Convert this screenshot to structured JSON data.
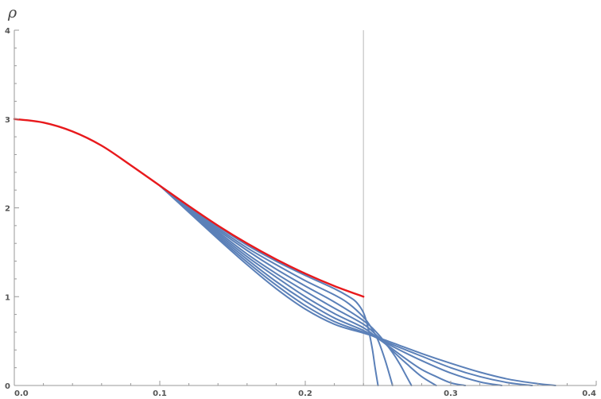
{
  "chart_data": {
    "type": "line",
    "title": "",
    "xlabel": "",
    "ylabel": "ρ",
    "xlim": [
      0,
      0.4
    ],
    "ylim": [
      0,
      4
    ],
    "x_ticks": [
      0.0,
      0.1,
      0.2,
      0.3,
      0.4
    ],
    "x_tick_labels": [
      "0.0",
      "0.1",
      "0.2",
      "0.3",
      "0.4"
    ],
    "y_ticks": [
      0,
      1,
      2,
      3,
      4
    ],
    "y_tick_labels": [
      "0",
      "1",
      "2",
      "3",
      "4"
    ],
    "grid": false,
    "legend": "none",
    "reference_line": {
      "x": 0.24,
      "color": "#c4c4c4"
    },
    "series": [
      {
        "color": "#e8191c",
        "x": [
          0,
          0.02,
          0.04,
          0.06,
          0.08,
          0.1,
          0.12,
          0.14,
          0.16,
          0.18,
          0.2,
          0.22,
          0.24
        ],
        "y": [
          3.0,
          2.96,
          2.86,
          2.7,
          2.48,
          2.25,
          2.02,
          1.8,
          1.6,
          1.42,
          1.26,
          1.12,
          1.0
        ]
      },
      {
        "color": "#5b80b8",
        "x": [
          0.1,
          0.12,
          0.14,
          0.16,
          0.18,
          0.2,
          0.22,
          0.23,
          0.235,
          0.24,
          0.243,
          0.246,
          0.248,
          0.25
        ],
        "y": [
          2.25,
          2.02,
          1.79,
          1.58,
          1.4,
          1.24,
          1.09,
          1.0,
          0.94,
          0.82,
          0.66,
          0.42,
          0.2,
          0.0
        ]
      },
      {
        "color": "#5b80b8",
        "x": [
          0.1,
          0.12,
          0.14,
          0.16,
          0.18,
          0.2,
          0.22,
          0.23,
          0.24,
          0.245,
          0.25,
          0.255,
          0.26
        ],
        "y": [
          2.25,
          2.01,
          1.77,
          1.55,
          1.36,
          1.18,
          1.02,
          0.92,
          0.77,
          0.66,
          0.51,
          0.28,
          0.0
        ]
      },
      {
        "color": "#5b80b8",
        "x": [
          0.1,
          0.12,
          0.14,
          0.16,
          0.18,
          0.2,
          0.22,
          0.24,
          0.25,
          0.26,
          0.265,
          0.27,
          0.273
        ],
        "y": [
          2.25,
          2.0,
          1.75,
          1.52,
          1.31,
          1.12,
          0.94,
          0.73,
          0.58,
          0.37,
          0.24,
          0.09,
          0.0
        ]
      },
      {
        "color": "#5b80b8",
        "x": [
          0.1,
          0.12,
          0.14,
          0.16,
          0.18,
          0.2,
          0.22,
          0.24,
          0.25,
          0.26,
          0.27,
          0.28,
          0.29
        ],
        "y": [
          2.25,
          1.99,
          1.73,
          1.48,
          1.26,
          1.06,
          0.87,
          0.69,
          0.55,
          0.39,
          0.24,
          0.1,
          0.0
        ]
      },
      {
        "color": "#5b80b8",
        "x": [
          0.1,
          0.12,
          0.14,
          0.16,
          0.18,
          0.2,
          0.22,
          0.24,
          0.25,
          0.26,
          0.27,
          0.28,
          0.29,
          0.3,
          0.31
        ],
        "y": [
          2.25,
          1.98,
          1.71,
          1.45,
          1.22,
          1.0,
          0.81,
          0.65,
          0.53,
          0.41,
          0.29,
          0.18,
          0.1,
          0.03,
          0.0
        ]
      },
      {
        "color": "#5b80b8",
        "x": [
          0.1,
          0.12,
          0.14,
          0.16,
          0.18,
          0.2,
          0.22,
          0.24,
          0.25,
          0.26,
          0.28,
          0.3,
          0.32,
          0.335
        ],
        "y": [
          2.25,
          1.97,
          1.69,
          1.42,
          1.17,
          0.95,
          0.76,
          0.62,
          0.53,
          0.44,
          0.28,
          0.14,
          0.04,
          0.0
        ]
      },
      {
        "color": "#5b80b8",
        "x": [
          0.1,
          0.12,
          0.14,
          0.16,
          0.18,
          0.2,
          0.22,
          0.24,
          0.25,
          0.26,
          0.28,
          0.3,
          0.32,
          0.34,
          0.356
        ],
        "y": [
          2.25,
          1.96,
          1.67,
          1.39,
          1.13,
          0.9,
          0.72,
          0.6,
          0.53,
          0.46,
          0.33,
          0.2,
          0.1,
          0.03,
          0.0
        ]
      },
      {
        "color": "#5b80b8",
        "x": [
          0.1,
          0.12,
          0.14,
          0.16,
          0.18,
          0.2,
          0.22,
          0.24,
          0.25,
          0.26,
          0.28,
          0.3,
          0.32,
          0.34,
          0.36,
          0.372
        ],
        "y": [
          2.25,
          1.95,
          1.65,
          1.36,
          1.09,
          0.86,
          0.69,
          0.59,
          0.54,
          0.48,
          0.36,
          0.25,
          0.15,
          0.07,
          0.02,
          0.0
        ]
      }
    ]
  }
}
